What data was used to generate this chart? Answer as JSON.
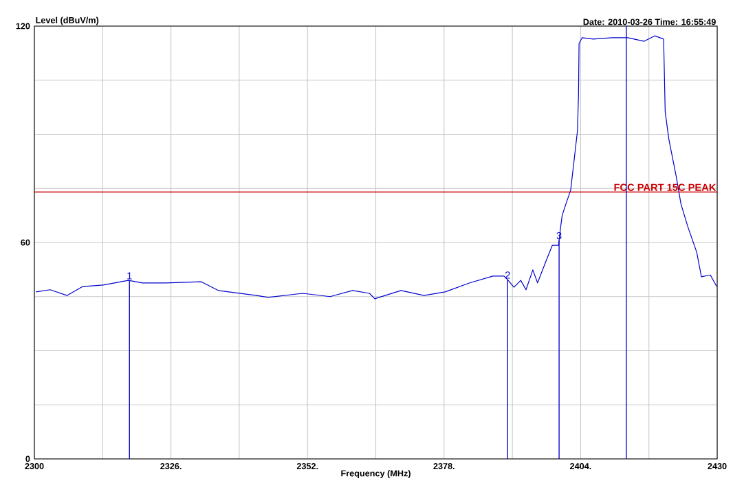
{
  "chart_data": {
    "type": "line",
    "title": "Date: 2010-03-26  Time: 16:55:49",
    "ylabel": "Level (dBuV/m)",
    "xlabel": "Frequency (MHz)",
    "xlim": [
      2300,
      2430
    ],
    "ylim": [
      0,
      120
    ],
    "xticks": [
      2300,
      {
        "value": 2313,
        "label": null
      },
      {
        "value": 2326,
        "label": "2326."
      },
      {
        "value": 2339,
        "label": null
      },
      {
        "value": 2352,
        "label": "2352."
      },
      {
        "value": 2365,
        "label": null
      },
      {
        "value": 2378,
        "label": "2378."
      },
      {
        "value": 2391,
        "label": null
      },
      {
        "value": 2404,
        "label": "2404."
      },
      {
        "value": 2417,
        "label": null
      },
      2430
    ],
    "yticks": [
      0,
      {
        "value": 15,
        "label": null
      },
      {
        "value": 30,
        "label": null
      },
      {
        "value": 45,
        "label": null
      },
      60,
      {
        "value": 75,
        "label": null
      },
      {
        "value": 90,
        "label": null
      },
      {
        "value": 105,
        "label": null
      },
      120
    ],
    "grid": true,
    "marker": "none",
    "line_style": "solid",
    "series": [
      {
        "color": "#0000cc",
        "x": [
          2300.3,
          2303.0,
          2306.2,
          2309.2,
          2313.1,
          2317.9,
          2320.6,
          2324.9,
          2331.8,
          2335.0,
          2342.3,
          2344.5,
          2351.1,
          2356.3,
          2360.6,
          2363.8,
          2364.8,
          2369.8,
          2374.2,
          2378.2,
          2382.9,
          2387.3,
          2389.4,
          2390.1,
          2391.3,
          2392.6,
          2393.6,
          2394.9,
          2395.8,
          2397.5,
          2398.6,
          2399.8,
          2399.9,
          2400.2,
          2400.5,
          2401.2,
          2402.1,
          2403.0,
          2403.4,
          2403.6,
          2403.7,
          2404.3,
          2406.4,
          2410.0,
          2413.0,
          2416.1,
          2418.1,
          2419.8,
          2420.1,
          2420.8,
          2422.2,
          2423.1,
          2424.4,
          2426.1,
          2427.0,
          2428.7,
          2429.9
        ],
        "values": [
          46.3,
          46.9,
          45.3,
          47.8,
          48.2,
          49.5,
          48.8,
          48.8,
          49.1,
          46.7,
          45.3,
          44.8,
          45.9,
          45.0,
          46.7,
          45.9,
          44.4,
          46.7,
          45.3,
          46.3,
          48.8,
          50.7,
          50.7,
          49.7,
          47.6,
          49.5,
          46.9,
          52.4,
          48.8,
          55.2,
          59.2,
          59.2,
          60.6,
          64.4,
          67.6,
          70.7,
          74.5,
          85.9,
          91.0,
          101.1,
          115.2,
          116.8,
          116.4,
          116.8,
          116.8,
          115.8,
          117.3,
          116.4,
          96.2,
          88.6,
          78.3,
          70.7,
          64.4,
          57.3,
          50.5,
          51.0,
          47.8
        ]
      }
    ],
    "ref_lines": [
      {
        "axis": "y",
        "value": 74,
        "label": "FCC PART 15C  PEAK",
        "color": "#cc0000"
      },
      {
        "axis": "x",
        "value": 2412.7,
        "color": "#0000cc"
      }
    ],
    "annotations": [
      {
        "text": "1",
        "x": 2318.1,
        "y": 49.5
      },
      {
        "text": "2",
        "x": 2390.1,
        "y": 49.7
      },
      {
        "text": "3",
        "x": 2399.9,
        "y": 60.6
      }
    ]
  }
}
